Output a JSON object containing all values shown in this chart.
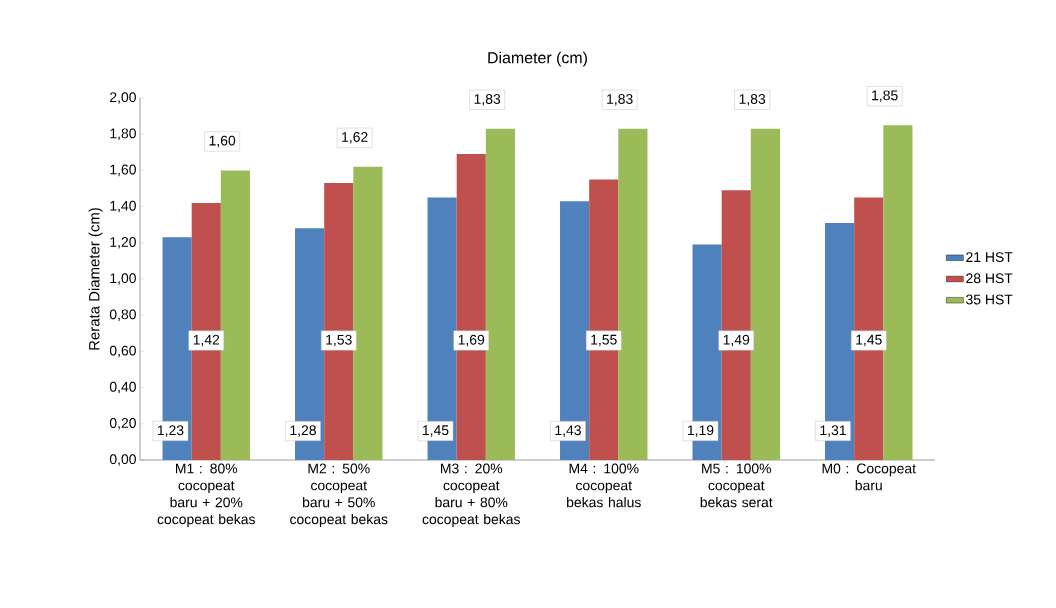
{
  "chart_data": {
    "type": "bar",
    "title": "Diameter (cm)",
    "ylabel": "Rerata Diameter (cm)",
    "categories": [
      "M1 : 80% cocopeat baru + 20% cocopeat bekas",
      "M2 : 50% cocopeat baru + 50% cocopeat bekas",
      "M3 : 20% cocopeat baru + 80% cocopeat bekas",
      "M4 : 100% cocopeat bekas halus",
      "M5 : 100% cocopeat bekas serat",
      "M0 : Cocopeat baru"
    ],
    "series": [
      {
        "name": "21 HST",
        "color": "#4f81bd",
        "values": [
          1.23,
          1.28,
          1.45,
          1.43,
          1.19,
          1.31
        ],
        "value_labels": [
          "1,23",
          "1,28",
          "1,45",
          "1,43",
          "1,19",
          "1,31"
        ]
      },
      {
        "name": "28 HST",
        "color": "#c0504d",
        "values": [
          1.42,
          1.53,
          1.69,
          1.55,
          1.49,
          1.45
        ],
        "value_labels": [
          "1,42",
          "1,53",
          "1,69",
          "1,55",
          "1,49",
          "1,45"
        ]
      },
      {
        "name": "35 HST",
        "color": "#9bbb59",
        "values": [
          1.6,
          1.62,
          1.83,
          1.83,
          1.83,
          1.85
        ],
        "value_labels": [
          "1,60",
          "1,62",
          "1,83",
          "1,83",
          "1,83",
          "1,85"
        ]
      }
    ],
    "ylim": [
      0,
      2
    ],
    "yticks": [
      {
        "value": 0,
        "label": "0,00"
      },
      {
        "value": 0.2,
        "label": "0,20"
      },
      {
        "value": 0.4,
        "label": "0,40"
      },
      {
        "value": 0.6,
        "label": "0,60"
      },
      {
        "value": 0.8,
        "label": "0,80"
      },
      {
        "value": 1.0,
        "label": "1,00"
      },
      {
        "value": 1.2,
        "label": "1,20"
      },
      {
        "value": 1.4,
        "label": "1,40"
      },
      {
        "value": 1.6,
        "label": "1,60"
      },
      {
        "value": 1.8,
        "label": "1,80"
      },
      {
        "value": 2.0,
        "label": "2,00"
      }
    ],
    "grid": false,
    "legend": "right"
  }
}
